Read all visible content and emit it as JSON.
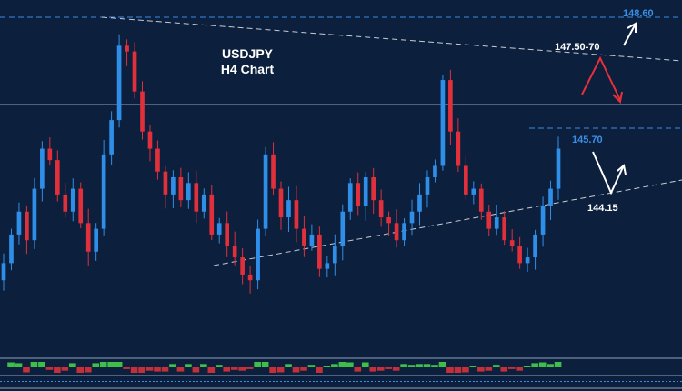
{
  "chart_data": {
    "type": "candlestick",
    "title": "USDJPY",
    "subtitle": "H4 Chart",
    "xlabel": "",
    "ylabel": "",
    "ylim": [
      143.0,
      149.2
    ],
    "grid": false,
    "colors": {
      "background": "#0c1f3c",
      "bull": "#2f8fe8",
      "bear": "#e0303c",
      "trendline": "#c8cdd6",
      "level_blue": "#3a8ee6",
      "arrow_red": "#e8303a",
      "arrow_white": "#ffffff"
    },
    "series": [
      {
        "name": "",
        "close": [
          144.6,
          145.1,
          145.5,
          145.0,
          145.9,
          146.6,
          146.4,
          145.8,
          145.5,
          145.9,
          145.3,
          144.8,
          145.2,
          146.5,
          147.1,
          148.4,
          148.3,
          147.6,
          146.9,
          146.6,
          146.2,
          145.8,
          146.1,
          145.7,
          146.0,
          145.5,
          145.8,
          145.1,
          145.3,
          144.9,
          144.7,
          144.4,
          144.3,
          145.2,
          146.5,
          145.9,
          145.4,
          145.7,
          145.2,
          144.9,
          145.1,
          144.5,
          144.6,
          144.9,
          145.5,
          146.0,
          145.6,
          146.1,
          145.7,
          145.4,
          145.3,
          145.0,
          145.3,
          145.5,
          145.8,
          146.1,
          146.3,
          147.8,
          146.9,
          146.3,
          145.8,
          145.9,
          145.5,
          145.2,
          145.4,
          145.0,
          144.9,
          144.6,
          144.7,
          145.1,
          145.6,
          145.9,
          146.6
        ]
      }
    ],
    "levels": [
      {
        "label": "148.60",
        "value": 148.6
      },
      {
        "label": "147.50-70",
        "value": 147.6
      },
      {
        "label": "145.70",
        "value": 145.7
      },
      {
        "label": "144.15",
        "value": 144.15
      }
    ]
  }
}
